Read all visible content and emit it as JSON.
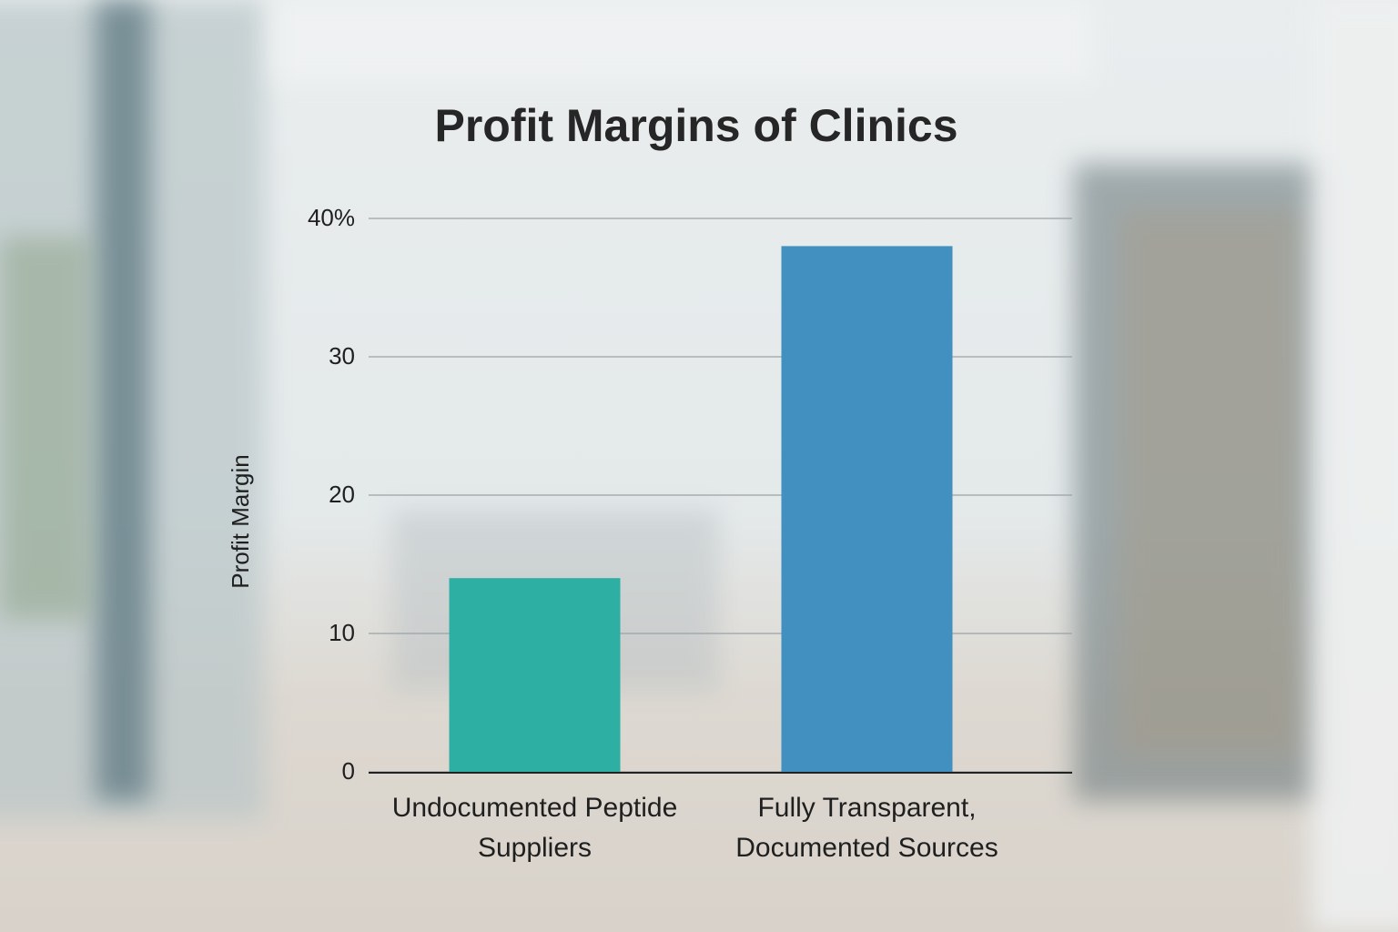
{
  "chart_data": {
    "type": "bar",
    "title": "Profit Margins of Clinics",
    "y_label": "Profit Margin",
    "categories": [
      "Undocumented Peptide Suppliers",
      "Fully Transparent, Documented Sources"
    ],
    "values": [
      14,
      38
    ],
    "colors": [
      "#2eafa4",
      "#4190c0"
    ],
    "ylim": [
      0,
      40
    ],
    "yticks": [
      0,
      10,
      20,
      30,
      {
        "value": 40,
        "label": "40%"
      }
    ],
    "grid": true
  }
}
